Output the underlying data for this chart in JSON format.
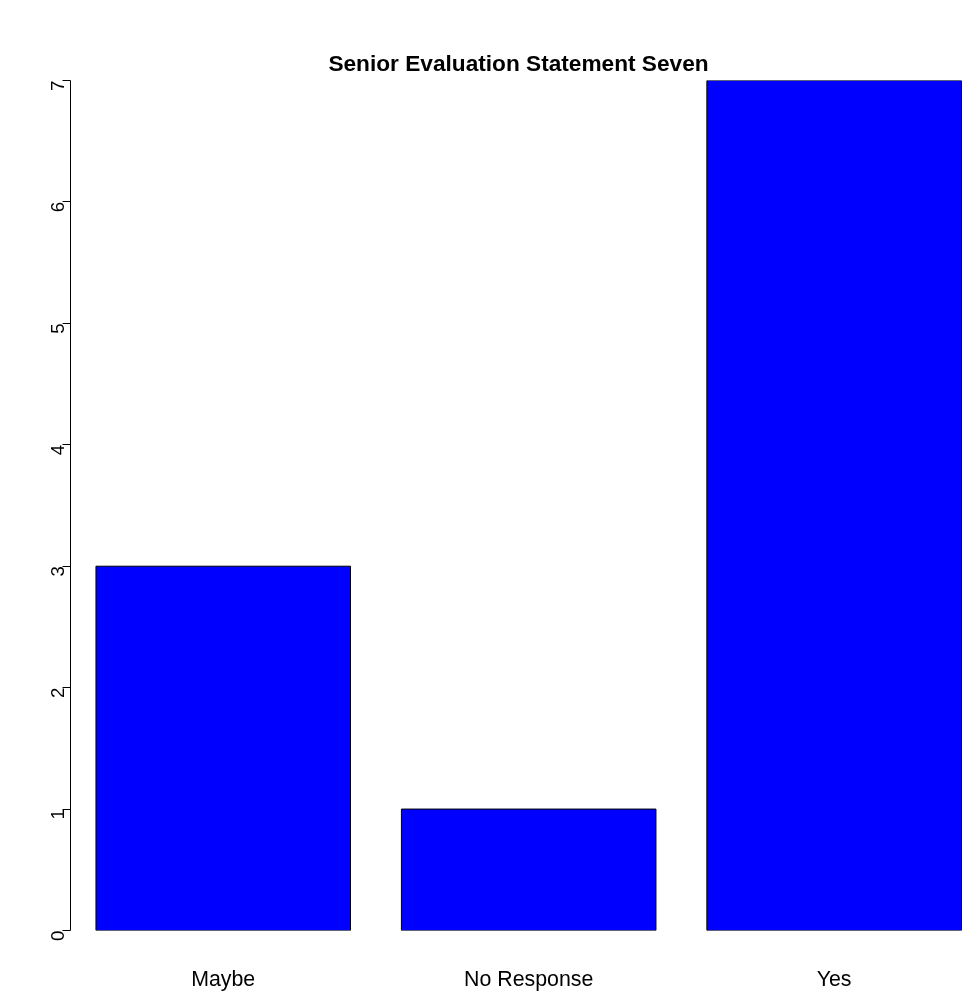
{
  "chart_data": {
    "type": "bar",
    "title": "Senior Evaluation Statement Seven",
    "categories": [
      "Maybe",
      "No Response",
      "Yes"
    ],
    "values": [
      3,
      1,
      7
    ],
    "color": "#0000ff",
    "ylim": [
      0,
      7
    ],
    "yticks": [
      0,
      1,
      2,
      3,
      4,
      5,
      6,
      7
    ],
    "grid": false
  }
}
